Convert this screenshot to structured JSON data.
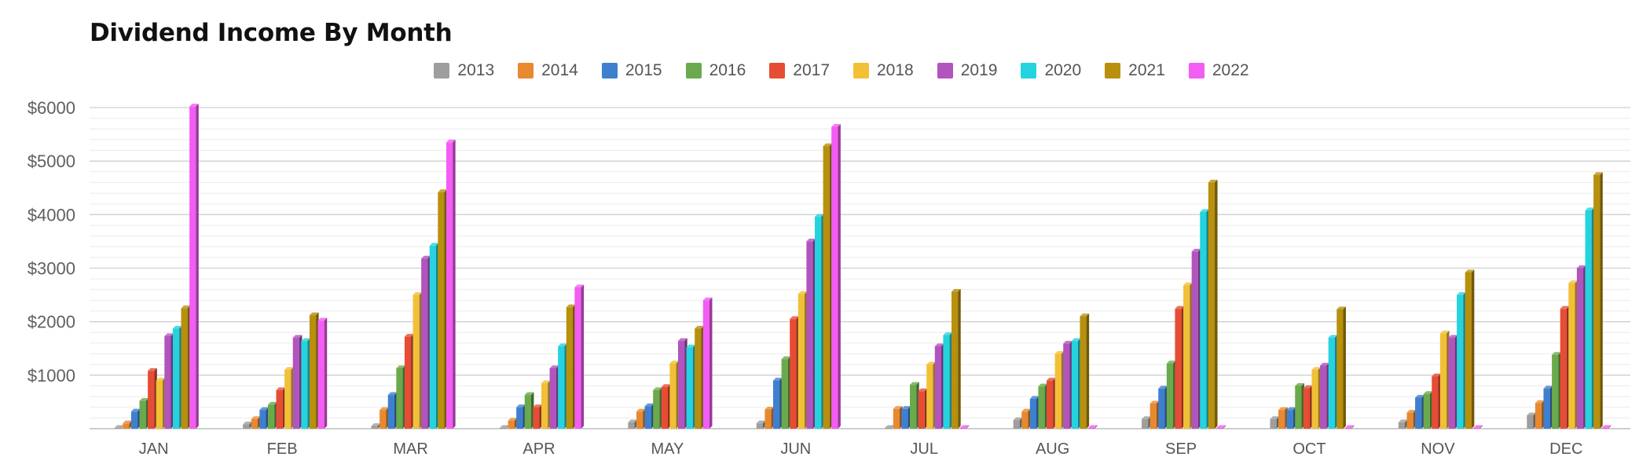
{
  "chart_data": {
    "type": "bar",
    "title": "Dividend Income By Month",
    "xlabel": "",
    "ylabel": "",
    "ylim": [
      0,
      6000
    ],
    "yticks": [
      "$1000",
      "$2000",
      "$3000",
      "$4000",
      "$5000",
      "$6000"
    ],
    "ytick_values": [
      1000,
      2000,
      3000,
      4000,
      5000,
      6000
    ],
    "grid": true,
    "legend_position": "top-center",
    "categories": [
      "JAN",
      "FEB",
      "MAR",
      "APR",
      "MAY",
      "JUN",
      "JUL",
      "AUG",
      "SEP",
      "OCT",
      "NOV",
      "DEC"
    ],
    "series": [
      {
        "name": "2013",
        "color": "#9e9e9e",
        "values": [
          0,
          80,
          50,
          0,
          120,
          100,
          0,
          160,
          180,
          180,
          120,
          250
        ]
      },
      {
        "name": "2014",
        "color": "#e8892f",
        "values": [
          100,
          180,
          350,
          150,
          320,
          360,
          370,
          320,
          470,
          350,
          300,
          480
        ]
      },
      {
        "name": "2015",
        "color": "#3f7fcf",
        "values": [
          320,
          350,
          630,
          400,
          420,
          900,
          370,
          560,
          750,
          350,
          580,
          750
        ]
      },
      {
        "name": "2016",
        "color": "#6aaa4c",
        "values": [
          520,
          450,
          1130,
          630,
          720,
          1300,
          820,
          790,
          1220,
          800,
          650,
          1380
        ]
      },
      {
        "name": "2017",
        "color": "#e74c35",
        "values": [
          1080,
          720,
          1720,
          400,
          780,
          2050,
          700,
          900,
          2240,
          760,
          980,
          2240
        ]
      },
      {
        "name": "2018",
        "color": "#f2c037",
        "values": [
          900,
          1100,
          2500,
          850,
          1220,
          2520,
          1200,
          1400,
          2680,
          1100,
          1780,
          2720
        ]
      },
      {
        "name": "2019",
        "color": "#b254bd",
        "values": [
          1730,
          1700,
          3180,
          1130,
          1640,
          3500,
          1540,
          1590,
          3310,
          1180,
          1700,
          3000
        ]
      },
      {
        "name": "2020",
        "color": "#25d3df",
        "values": [
          1870,
          1640,
          3420,
          1540,
          1520,
          3960,
          1750,
          1640,
          4050,
          1700,
          2500,
          4080
        ]
      },
      {
        "name": "2021",
        "color": "#b8900d",
        "values": [
          2250,
          2120,
          4420,
          2270,
          1870,
          5280,
          2560,
          2100,
          4600,
          2230,
          2920,
          4740
        ]
      },
      {
        "name": "2022",
        "color": "#f35df3",
        "values": [
          6020,
          2020,
          5350,
          2640,
          2400,
          5640,
          0,
          0,
          0,
          0,
          0,
          0
        ]
      }
    ]
  }
}
